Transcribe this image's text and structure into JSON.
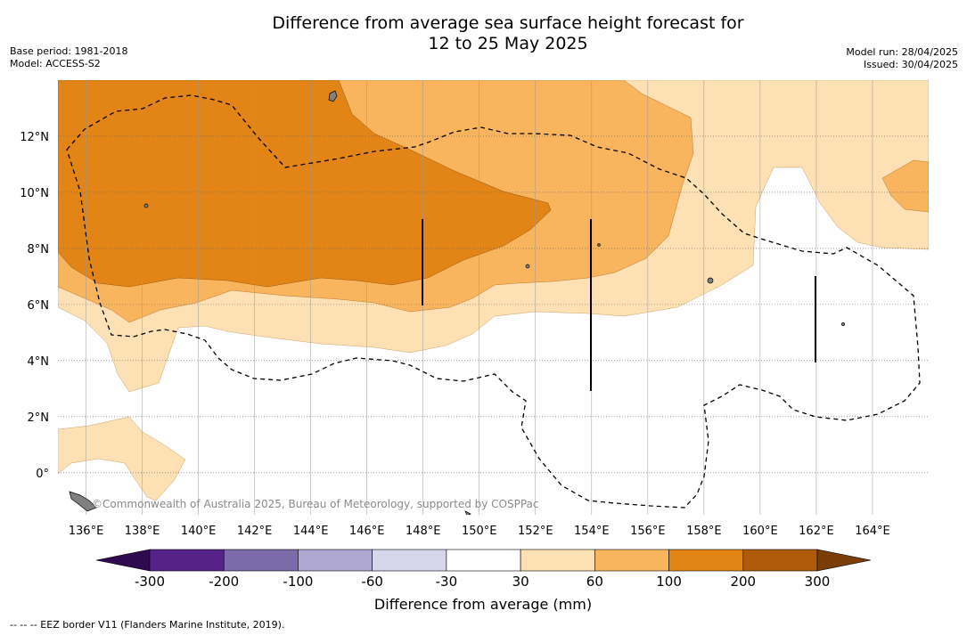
{
  "title_line1": "Difference from average sea surface height forecast for",
  "title_line2": "12 to 25 May 2025",
  "base_period": "Base period: 1981-2018",
  "model": "Model: ACCESS-S2",
  "model_run": "Model run: 28/04/2025",
  "issued": "Issued: 30/04/2025",
  "copyright": "©Commonwealth of Australia 2025, Bureau of Meteorology, supported by COSPPac",
  "footnote": "--  --  -- EEZ border V11 (Flanders Marine Institute, 2019).",
  "map": {
    "lon_range": [
      135,
      166
    ],
    "lat_range": [
      -1.5,
      14
    ],
    "lon_ticks": [
      "136°E",
      "138°E",
      "140°E",
      "142°E",
      "144°E",
      "146°E",
      "148°E",
      "150°E",
      "152°E",
      "154°E",
      "156°E",
      "158°E",
      "160°E",
      "162°E",
      "164°E"
    ],
    "lat_ticks": [
      "0°",
      "2°N",
      "4°N",
      "6°N",
      "8°N",
      "10°N",
      "12°N"
    ],
    "colors": {
      "level_30_60": "#fde0b4",
      "level_60_100": "#f9b45e",
      "level_100_200": "#e28416",
      "land": "#808080",
      "grid": "#9a9a9a"
    }
  },
  "colorbar": {
    "title": "Difference from average (mm)",
    "tick_labels": [
      "-300",
      "-200",
      "-100",
      "-60",
      "-30",
      "30",
      "60",
      "100",
      "200",
      "300"
    ],
    "colors": [
      "#2f0a4f",
      "#56228a",
      "#7c6aaa",
      "#aea8d2",
      "#d6d6ea",
      "#ffffff",
      "#fde0b4",
      "#f9b45e",
      "#e28416",
      "#b05a0b",
      "#7a3d08"
    ]
  }
}
